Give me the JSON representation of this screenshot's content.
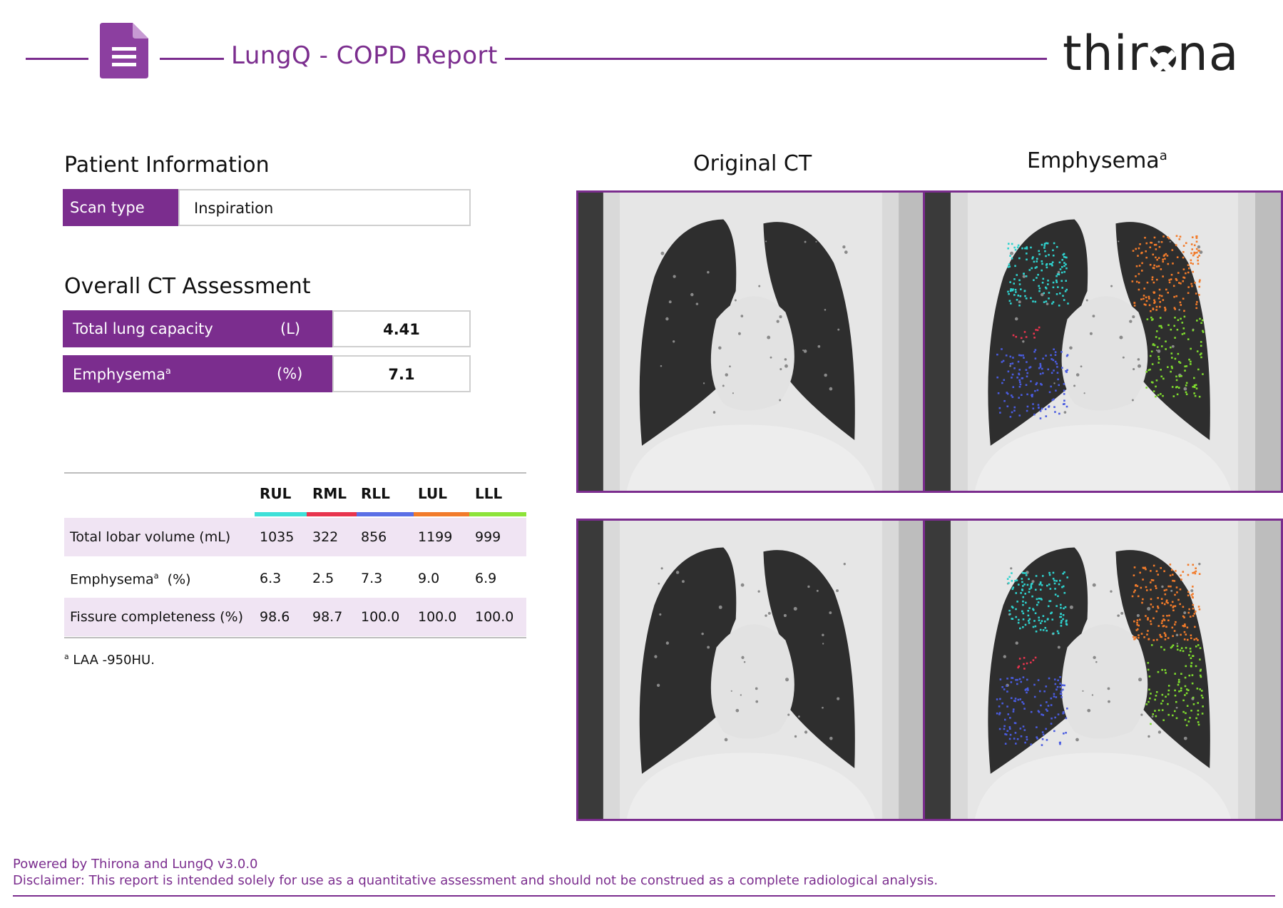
{
  "header": {
    "title": "LungQ - COPD Report",
    "logo_left": "thir",
    "logo_right": "na",
    "accent": "#7b2d8e"
  },
  "patient": {
    "heading": "Patient Information",
    "scan_type_label": "Scan type",
    "scan_type_value": "Inspiration"
  },
  "assessment": {
    "heading": "Overall CT Assessment",
    "rows": [
      {
        "label": "Total lung capacity",
        "sup": "",
        "unit": "(L)",
        "value": "4.41"
      },
      {
        "label": "Emphysema",
        "sup": "a",
        "unit": "(%)",
        "value": "7.1"
      }
    ]
  },
  "lobar_table": {
    "columns": [
      "RUL",
      "RML",
      "RLL",
      "LUL",
      "LLL"
    ],
    "column_colors": [
      "#3ee0d8",
      "#e8344e",
      "#5b6fe6",
      "#f27b2a",
      "#8de33a"
    ],
    "rows": [
      {
        "label": "Total lobar volume  (mL)",
        "sup": "",
        "values": [
          "1035",
          "322",
          "856",
          "1199",
          "999"
        ],
        "shaded": true
      },
      {
        "label": "Emphysema",
        "sup": "a",
        "label_suffix": "  (%)",
        "values": [
          "6.3",
          "2.5",
          "7.3",
          "9.0",
          "6.9"
        ],
        "shaded": false
      },
      {
        "label": "Fissure completeness (%)",
        "sup": "",
        "values": [
          "98.6",
          "98.7",
          "100.0",
          "100.0",
          "100.0"
        ],
        "shaded": true
      }
    ],
    "footnote_sup": "a",
    "footnote": " LAA -950HU."
  },
  "images": {
    "original_heading": "Original CT",
    "emphysema_heading": "Emphysema",
    "emphysema_sup": "a"
  },
  "footer": {
    "powered_by": "Powered by Thirona and LungQ v3.0.0",
    "disclaimer": "Disclaimer: This report is intended solely for use as a quantitative assessment and should not be construed as a complete radiological analysis."
  }
}
